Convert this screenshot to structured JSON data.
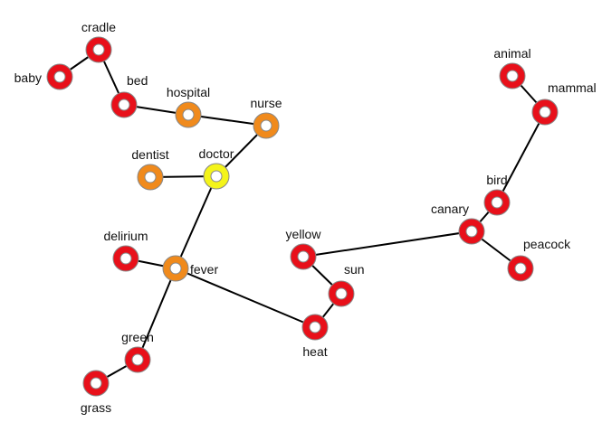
{
  "colors": {
    "red": "#e8101a",
    "orange": "#f08a1c",
    "yellow": "#f4f41a",
    "edge": "#000000"
  },
  "nodes": [
    {
      "id": "baby",
      "label": "baby",
      "color": "red"
    },
    {
      "id": "cradle",
      "label": "cradle",
      "color": "red"
    },
    {
      "id": "bed",
      "label": "bed",
      "color": "red"
    },
    {
      "id": "hospital",
      "label": "hospital",
      "color": "orange"
    },
    {
      "id": "nurse",
      "label": "nurse",
      "color": "orange"
    },
    {
      "id": "dentist",
      "label": "dentist",
      "color": "orange"
    },
    {
      "id": "doctor",
      "label": "doctor",
      "color": "yellow"
    },
    {
      "id": "delirium",
      "label": "delirium",
      "color": "red"
    },
    {
      "id": "fever",
      "label": "fever",
      "color": "orange"
    },
    {
      "id": "green",
      "label": "green",
      "color": "red"
    },
    {
      "id": "grass",
      "label": "grass",
      "color": "red"
    },
    {
      "id": "yellow",
      "label": "yellow",
      "color": "red"
    },
    {
      "id": "sun",
      "label": "sun",
      "color": "red"
    },
    {
      "id": "heat",
      "label": "heat",
      "color": "red"
    },
    {
      "id": "canary",
      "label": "canary",
      "color": "red"
    },
    {
      "id": "bird",
      "label": "bird",
      "color": "red"
    },
    {
      "id": "peacock",
      "label": "peacock",
      "color": "red"
    },
    {
      "id": "animal",
      "label": "animal",
      "color": "red"
    },
    {
      "id": "mammal",
      "label": "mammal",
      "color": "red"
    }
  ],
  "edges": [
    [
      "baby",
      "cradle"
    ],
    [
      "cradle",
      "bed"
    ],
    [
      "bed",
      "hospital"
    ],
    [
      "hospital",
      "nurse"
    ],
    [
      "nurse",
      "doctor"
    ],
    [
      "dentist",
      "doctor"
    ],
    [
      "doctor",
      "fever"
    ],
    [
      "delirium",
      "fever"
    ],
    [
      "fever",
      "green"
    ],
    [
      "green",
      "grass"
    ],
    [
      "fever",
      "heat"
    ],
    [
      "heat",
      "sun"
    ],
    [
      "sun",
      "yellow"
    ],
    [
      "yellow",
      "canary"
    ],
    [
      "canary",
      "bird"
    ],
    [
      "canary",
      "peacock"
    ],
    [
      "bird",
      "mammal"
    ],
    [
      "mammal",
      "animal"
    ]
  ]
}
